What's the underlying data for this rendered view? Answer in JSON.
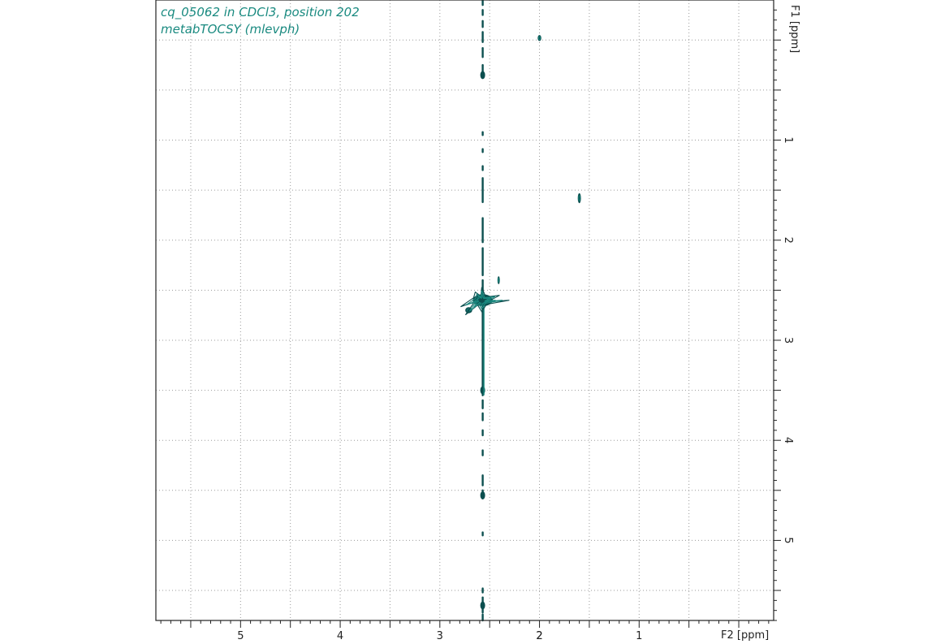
{
  "chart_data": {
    "type": "scatter",
    "subtype": "2D NMR contour plot",
    "title_lines": [
      "cq_05062 in CDCl3, position 202",
      "metabTOCSY (mlevph)"
    ],
    "xlabel": "F2 [ppm]",
    "ylabel": "F1 [ppm]",
    "x_axis_reversed": true,
    "xlim": [
      5.85,
      -0.35
    ],
    "ylim": [
      -0.4,
      5.8
    ],
    "x_tick_labels": [
      {
        "value": 5,
        "label": "5"
      },
      {
        "value": 4,
        "label": "4"
      },
      {
        "value": 3,
        "label": "3"
      },
      {
        "value": 2,
        "label": "2"
      },
      {
        "value": 1,
        "label": "1"
      }
    ],
    "y_tick_labels": [
      {
        "value": 1,
        "label": "1"
      },
      {
        "value": 2,
        "label": "2"
      },
      {
        "value": 3,
        "label": "3"
      },
      {
        "value": 4,
        "label": "4"
      },
      {
        "value": 5,
        "label": "5"
      }
    ],
    "grid": true,
    "colors": {
      "contour_dark": "#0c4f4f",
      "contour_light": "#1a8a80",
      "grid": "#9a9a9a",
      "title": "#1a8a80"
    },
    "t1_noise_ridge": {
      "x": 2.57,
      "segments": [
        [
          -0.4,
          -0.35
        ],
        [
          -0.3,
          -0.25
        ],
        [
          -0.19,
          -0.13
        ],
        [
          -0.08,
          0.02
        ],
        [
          0.08,
          0.17
        ],
        [
          0.25,
          0.35
        ],
        [
          0.92,
          0.95
        ],
        [
          1.09,
          1.12
        ],
        [
          1.26,
          1.3
        ],
        [
          1.38,
          1.62
        ],
        [
          1.78,
          2.02
        ],
        [
          2.08,
          2.35
        ],
        [
          2.4,
          2.5
        ],
        [
          2.5,
          2.95
        ],
        [
          2.95,
          3.55
        ],
        [
          3.6,
          3.68
        ],
        [
          3.73,
          3.8
        ],
        [
          3.9,
          3.95
        ],
        [
          4.1,
          4.15
        ],
        [
          4.35,
          4.45
        ],
        [
          4.5,
          4.58
        ],
        [
          4.92,
          4.95
        ],
        [
          5.48,
          5.52
        ],
        [
          5.57,
          5.62
        ],
        [
          5.66,
          5.72
        ],
        [
          5.74,
          5.8
        ]
      ],
      "blobs": [
        0.35,
        3.5,
        4.55,
        5.65
      ]
    },
    "peaks": [
      {
        "x": 2.0,
        "y": -0.02,
        "rx": 0.018,
        "ry": 0.03
      },
      {
        "x": 1.6,
        "y": 1.58,
        "rx": 0.016,
        "ry": 0.05
      },
      {
        "x": 2.41,
        "y": 2.4,
        "rx": 0.012,
        "ry": 0.04
      },
      {
        "x": 2.71,
        "y": 2.7,
        "rx": 0.035,
        "ry": 0.03
      },
      {
        "x": 2.57,
        "y": 2.6,
        "rx": 0.1,
        "ry": 0.06
      }
    ]
  }
}
